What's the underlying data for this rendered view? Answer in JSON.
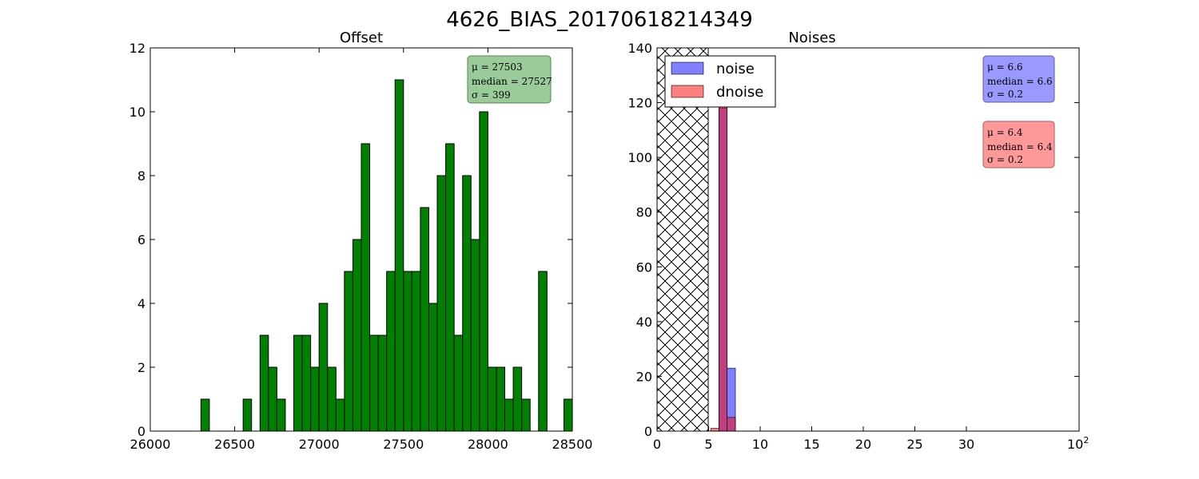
{
  "figure": {
    "suptitle": "4626_BIAS_20170618214349"
  },
  "chart_data": [
    {
      "type": "bar",
      "title": "Offset",
      "xlabel": "",
      "ylabel": "",
      "xlim": [
        26000,
        28500
      ],
      "ylim": [
        0,
        12
      ],
      "xticks": [
        26000,
        26500,
        27000,
        27500,
        28000,
        28500
      ],
      "xtick_labels": [
        "26000",
        "26500",
        "27000",
        "27500",
        "28000",
        "28500"
      ],
      "yticks": [
        0,
        2,
        4,
        6,
        8,
        10,
        12
      ],
      "ytick_labels": [
        "0",
        "2",
        "4",
        "6",
        "8",
        "10",
        "12"
      ],
      "bin_width": 50,
      "color": "#008000",
      "series": [
        {
          "bins": [
            {
              "x": 26325,
              "count": 1
            },
            {
              "x": 26575,
              "count": 1
            },
            {
              "x": 26675,
              "count": 3
            },
            {
              "x": 26725,
              "count": 2
            },
            {
              "x": 26775,
              "count": 1
            },
            {
              "x": 26875,
              "count": 3
            },
            {
              "x": 26925,
              "count": 3
            },
            {
              "x": 26975,
              "count": 2
            },
            {
              "x": 27025,
              "count": 4
            },
            {
              "x": 27075,
              "count": 2
            },
            {
              "x": 27125,
              "count": 1
            },
            {
              "x": 27175,
              "count": 5
            },
            {
              "x": 27225,
              "count": 6
            },
            {
              "x": 27275,
              "count": 9
            },
            {
              "x": 27325,
              "count": 3
            },
            {
              "x": 27375,
              "count": 3
            },
            {
              "x": 27425,
              "count": 5
            },
            {
              "x": 27475,
              "count": 11
            },
            {
              "x": 27525,
              "count": 5
            },
            {
              "x": 27575,
              "count": 5
            },
            {
              "x": 27625,
              "count": 7
            },
            {
              "x": 27675,
              "count": 4
            },
            {
              "x": 27725,
              "count": 8
            },
            {
              "x": 27775,
              "count": 9
            },
            {
              "x": 27825,
              "count": 3
            },
            {
              "x": 27875,
              "count": 8
            },
            {
              "x": 27925,
              "count": 6
            },
            {
              "x": 27975,
              "count": 10
            },
            {
              "x": 28025,
              "count": 2
            },
            {
              "x": 28075,
              "count": 2
            },
            {
              "x": 28125,
              "count": 1
            },
            {
              "x": 28175,
              "count": 2
            },
            {
              "x": 28225,
              "count": 1
            },
            {
              "x": 28325,
              "count": 5
            },
            {
              "x": 28475,
              "count": 1
            }
          ]
        }
      ],
      "annotation": {
        "lines": [
          "μ = 27503",
          "median = 27527",
          "σ = 399"
        ],
        "color": "#99cc99",
        "position": "top-right"
      },
      "grid": false,
      "legend": "none"
    },
    {
      "type": "bar",
      "title": "Noises",
      "xlabel": "",
      "ylabel": "",
      "xlim": [
        0,
        100
      ],
      "ylim": [
        0,
        140
      ],
      "xticks": [
        0,
        5,
        10,
        15,
        20,
        25,
        30
      ],
      "xtick_labels": [
        "0",
        "5",
        "10",
        "15",
        "20",
        "25",
        "30"
      ],
      "x_end_label": {
        "base": "10",
        "exponent": "2"
      },
      "yticks": [
        0,
        20,
        40,
        60,
        80,
        100,
        120,
        140
      ],
      "ytick_labels": [
        "0",
        "20",
        "40",
        "60",
        "80",
        "100",
        "120",
        "140"
      ],
      "hatched_region": {
        "x_range": [
          0,
          5
        ],
        "pattern": "cross-hatch"
      },
      "series": [
        {
          "name": "noise",
          "color": "#0000ff",
          "alpha": 0.5,
          "bins": [
            {
              "x0": 6.0,
              "x1": 6.8,
              "count": 118
            },
            {
              "x0": 6.8,
              "x1": 7.6,
              "count": 23
            }
          ]
        },
        {
          "name": "dnoise",
          "color": "#ff0000",
          "alpha": 0.5,
          "bins": [
            {
              "x0": 5.2,
              "x1": 6.0,
              "count": 1
            },
            {
              "x0": 6.0,
              "x1": 6.8,
              "count": 134
            },
            {
              "x0": 6.8,
              "x1": 7.6,
              "count": 5
            }
          ]
        }
      ],
      "annotations": [
        {
          "lines": [
            "μ = 6.6",
            "median = 6.6",
            "σ = 0.2"
          ],
          "color": "#9999ff"
        },
        {
          "lines": [
            "μ = 6.4",
            "median = 6.4",
            "σ = 0.2"
          ],
          "color": "#ff9999"
        }
      ],
      "grid": false,
      "legend": "top-left"
    }
  ]
}
